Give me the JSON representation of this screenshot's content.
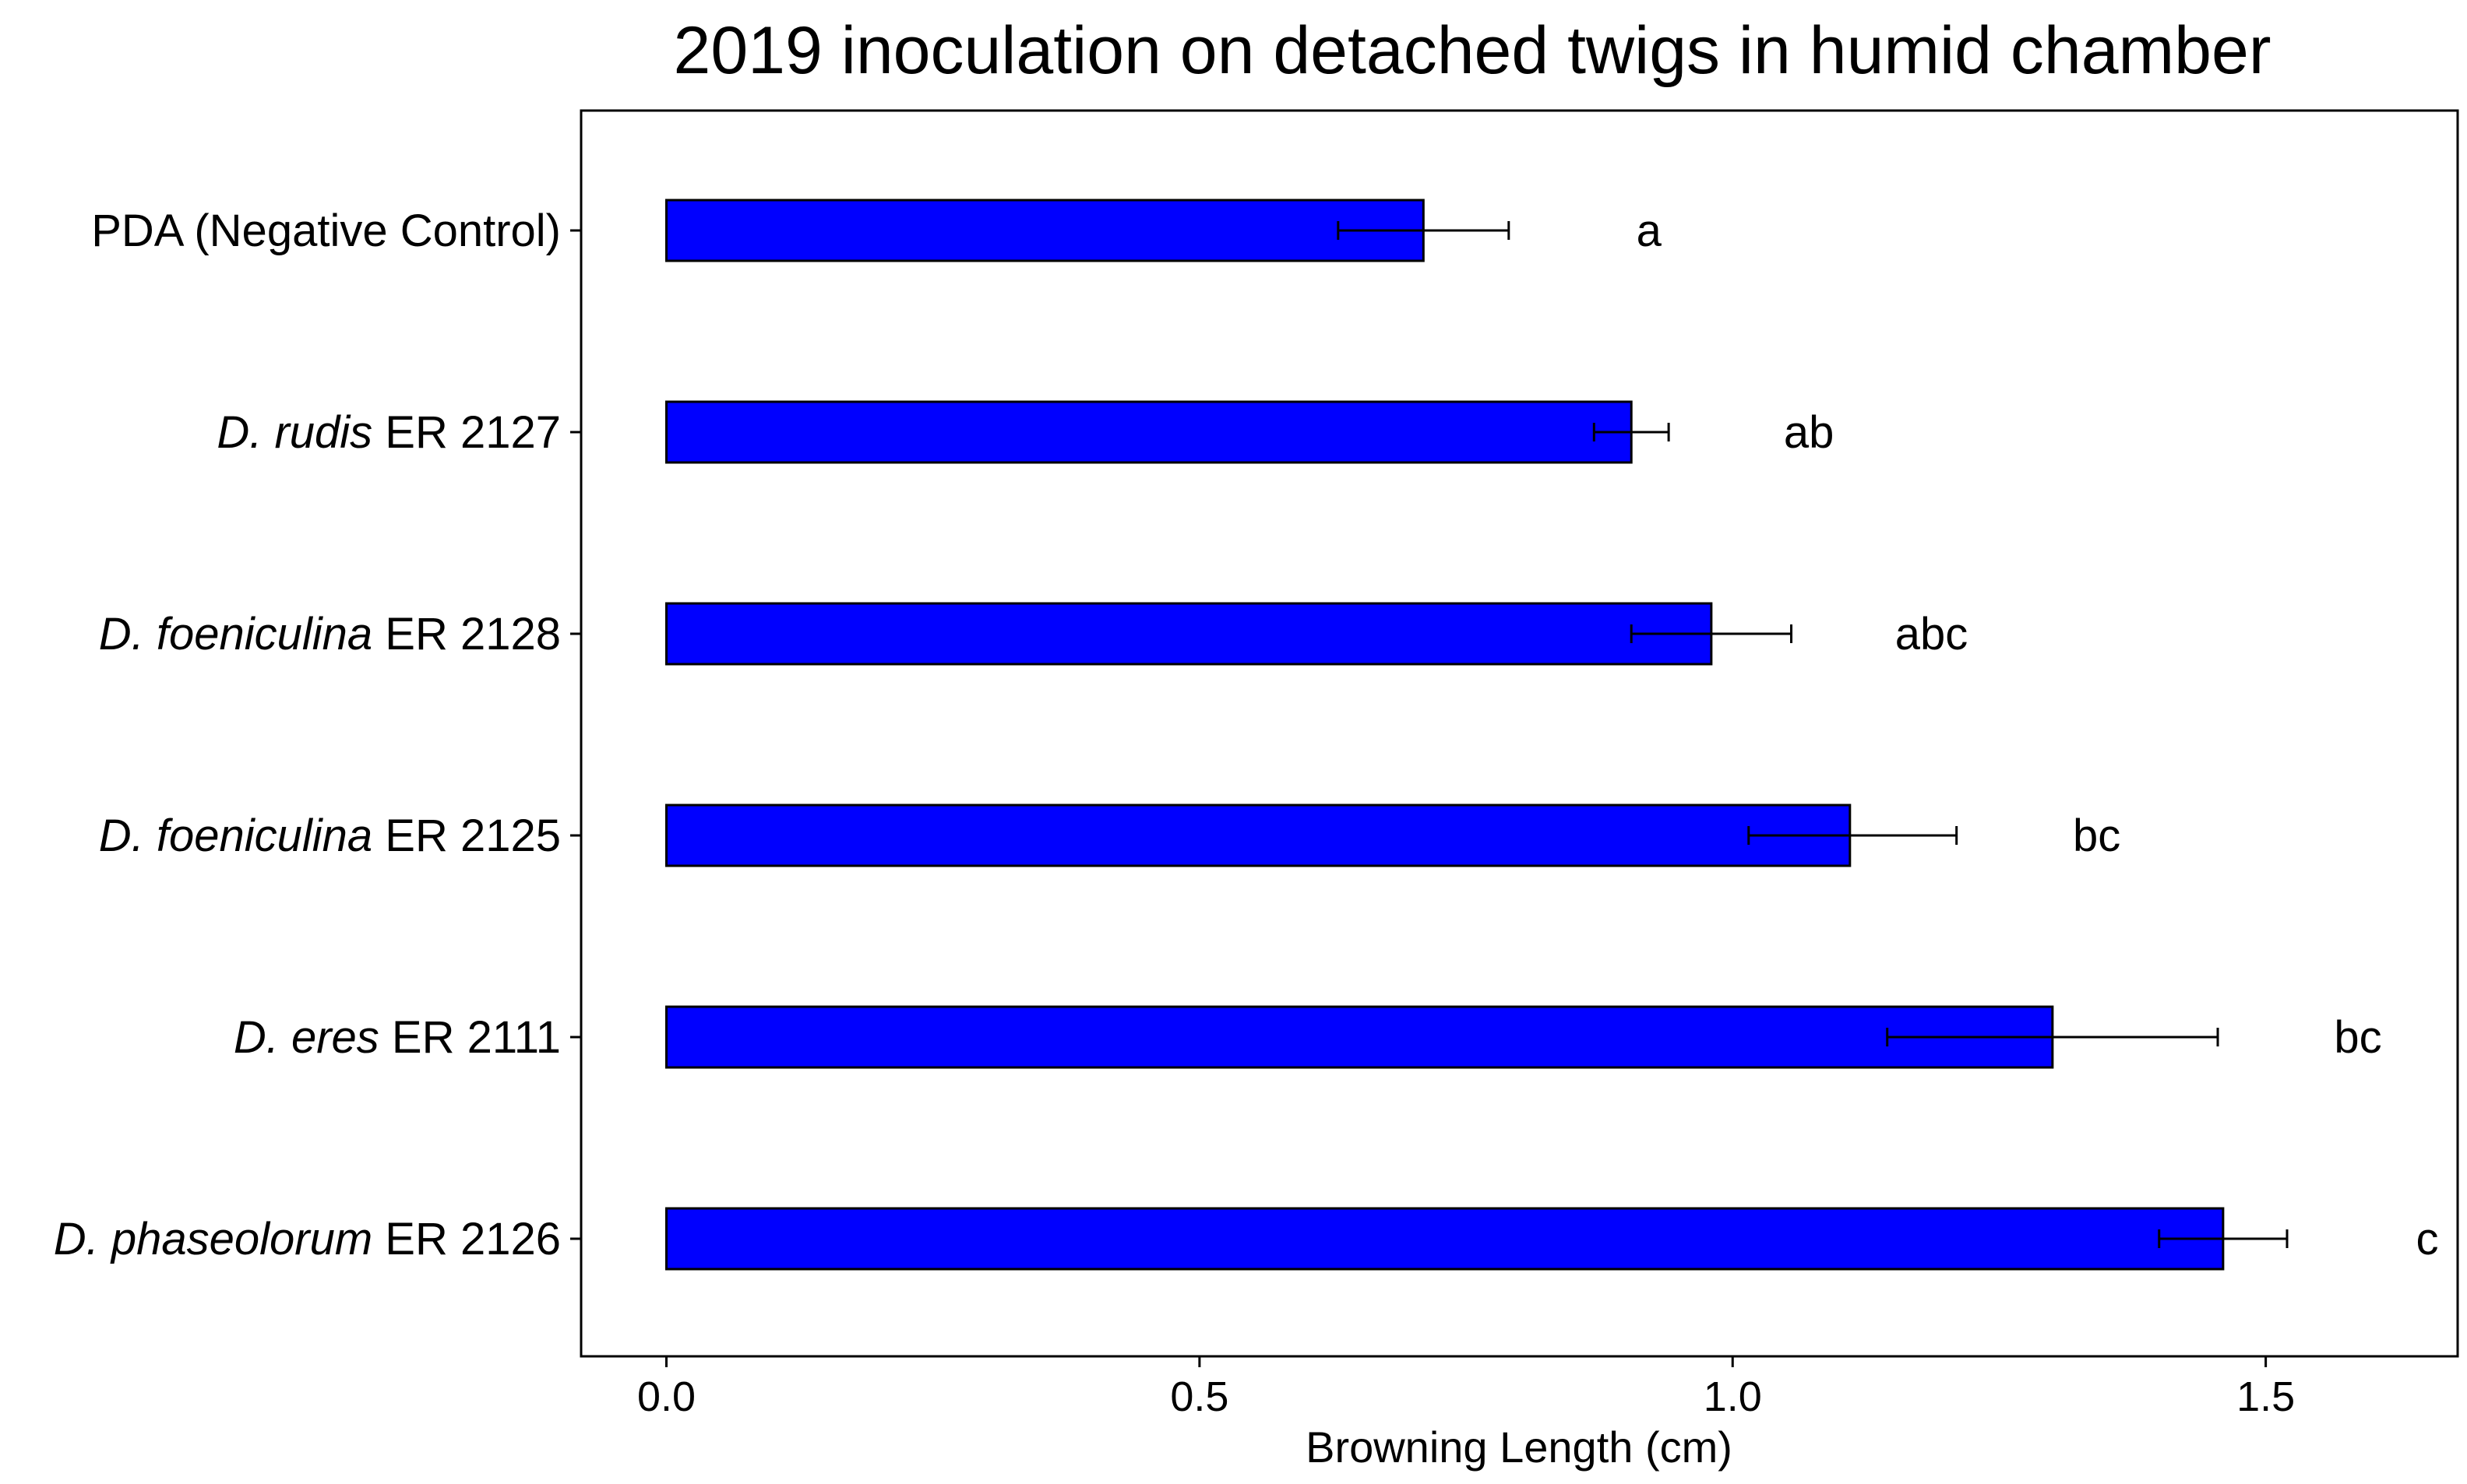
{
  "chart_data": {
    "type": "bar",
    "orientation": "horizontal",
    "title": "2019 inoculation on detached twigs in humid chamber",
    "xlabel": "Browning Length (cm)",
    "ylabel": "",
    "xlim": [
      -0.08,
      1.68
    ],
    "xticks": [
      "0.0",
      "0.5",
      "1.0",
      "1.5"
    ],
    "xtick_values": [
      0,
      0.5,
      1.0,
      1.5
    ],
    "bar_color": "#0000ff",
    "grid": false,
    "categories": [
      {
        "italic": "",
        "plain": "PDA (Negative Control)"
      },
      {
        "italic": "D. rudis",
        "plain": " ER 2127"
      },
      {
        "italic": "D. foeniculina",
        "plain": " ER 2128"
      },
      {
        "italic": "D. foeniculina",
        "plain": " ER 2125"
      },
      {
        "italic": "D. eres",
        "plain": " ER 2111"
      },
      {
        "italic": "D. phaseolorum",
        "plain": " ER 2126"
      }
    ],
    "values": [
      0.71,
      0.905,
      0.98,
      1.11,
      1.3,
      1.46
    ],
    "error_low": [
      0.63,
      0.87,
      0.905,
      1.015,
      1.145,
      1.4
    ],
    "error_high": [
      0.79,
      0.94,
      1.055,
      1.21,
      1.455,
      1.52
    ],
    "significance_letters": [
      "a",
      "ab",
      "abc",
      "bc",
      "bc",
      "c"
    ]
  }
}
